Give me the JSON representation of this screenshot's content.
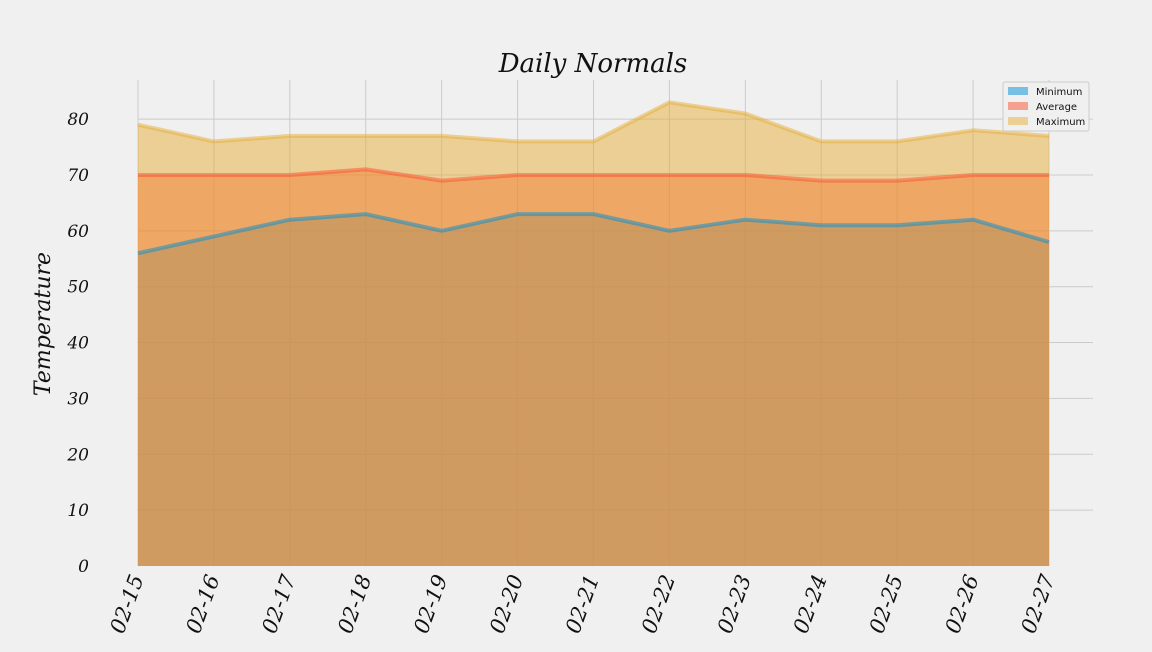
{
  "chart_data": {
    "type": "area",
    "title": "Daily Normals",
    "xlabel": "",
    "ylabel": "Temperature",
    "categories": [
      "02-15",
      "02-16",
      "02-17",
      "02-18",
      "02-19",
      "02-20",
      "02-21",
      "02-22",
      "02-23",
      "02-24",
      "02-25",
      "02-26",
      "02-27"
    ],
    "series": [
      {
        "name": "Minimum",
        "values": [
          56,
          59,
          62,
          63,
          60,
          63,
          63,
          60,
          62,
          61,
          61,
          62,
          58
        ],
        "color": "#008fd5"
      },
      {
        "name": "Average",
        "values": [
          70,
          70,
          70,
          71,
          69,
          70,
          70,
          70,
          70,
          69,
          69,
          70,
          70
        ],
        "color": "#fc4f30"
      },
      {
        "name": "Maximum",
        "values": [
          79,
          76,
          77,
          77,
          77,
          76,
          76,
          83,
          81,
          76,
          76,
          78,
          77
        ],
        "color": "#e5ae38"
      }
    ],
    "stacked": false,
    "ylim": [
      0,
      87
    ],
    "yticks": [
      0,
      10,
      20,
      30,
      40,
      50,
      60,
      70,
      80
    ],
    "grid": true,
    "legend_position": "top-right",
    "style": "fivethirtyeight"
  }
}
